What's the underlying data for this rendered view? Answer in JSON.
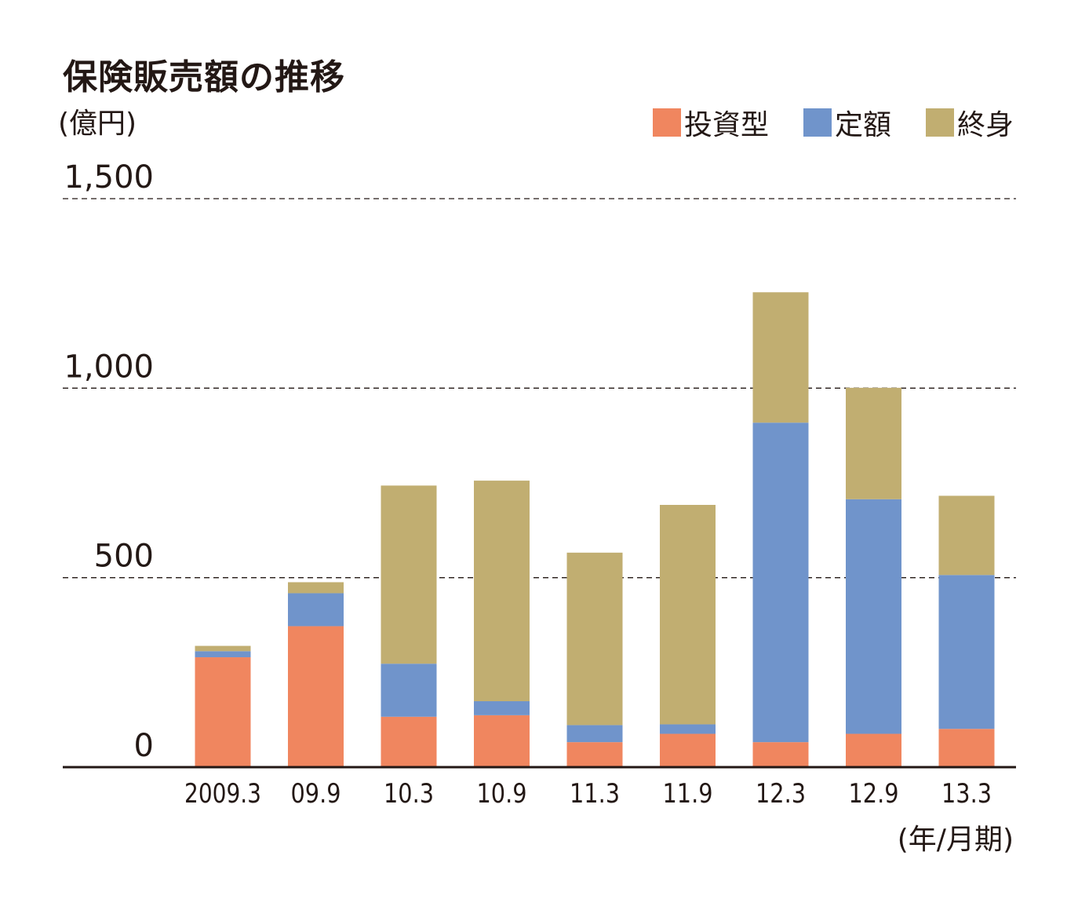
{
  "chart_data": {
    "type": "bar",
    "stacked": true,
    "title": "保険販売額の推移",
    "unit_label": "(億円)",
    "x_unit_label": "(年/月期)",
    "categories": [
      "2009.3",
      "09.9",
      "10.3",
      "10.9",
      "11.3",
      "11.9",
      "12.3",
      "12.9",
      "13.3"
    ],
    "series": [
      {
        "name": "投資型",
        "color": "#F0865F",
        "values": [
          290,
          372,
          133,
          137,
          66,
          88,
          66,
          88,
          101
        ]
      },
      {
        "name": "定額",
        "color": "#7094CB",
        "values": [
          16,
          87,
          140,
          37,
          45,
          25,
          843,
          619,
          406
        ]
      },
      {
        "name": "終身",
        "color": "#C1AE71",
        "values": [
          14,
          29,
          470,
          582,
          455,
          579,
          344,
          294,
          209
        ]
      }
    ],
    "ylim": [
      0,
      1500
    ],
    "yticks": [
      "0",
      "500",
      "1,000",
      "1,500"
    ],
    "ytick_values": [
      0,
      500,
      1000,
      1500
    ],
    "grid": "dashed horizontal",
    "legend_position": "top-right"
  }
}
